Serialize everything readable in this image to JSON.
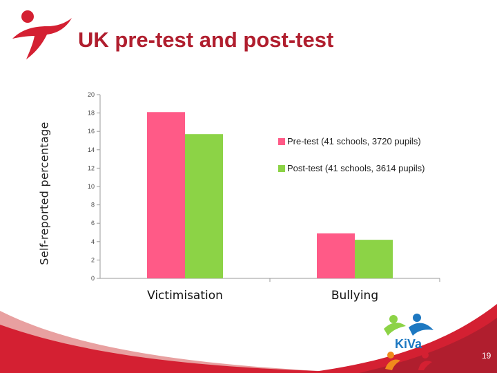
{
  "slide": {
    "title": "UK pre-test and post-test",
    "page_number": "19",
    "brand_logo": "kiva-logo",
    "corner_logo": "running-figure-logo",
    "accent_color": "#d42032"
  },
  "chart_data": {
    "type": "bar",
    "title": "",
    "xlabel": "",
    "ylabel": "Self-reported percentage",
    "categories": [
      "Victimisation",
      "Bullying"
    ],
    "series": [
      {
        "name": "Pre-test (41 schools, 3720 pupils)",
        "color": "#ff5a87",
        "values": [
          18.1,
          4.9
        ]
      },
      {
        "name": "Post-test (41 schools, 3614 pupils)",
        "color": "#8cd346",
        "values": [
          15.7,
          4.2
        ]
      }
    ],
    "ylim": [
      0,
      20
    ],
    "yticks": [
      "0",
      "2",
      "4",
      "6",
      "8",
      "10",
      "12",
      "14",
      "16",
      "18",
      "20"
    ],
    "grid": false,
    "legend_position": "right"
  }
}
